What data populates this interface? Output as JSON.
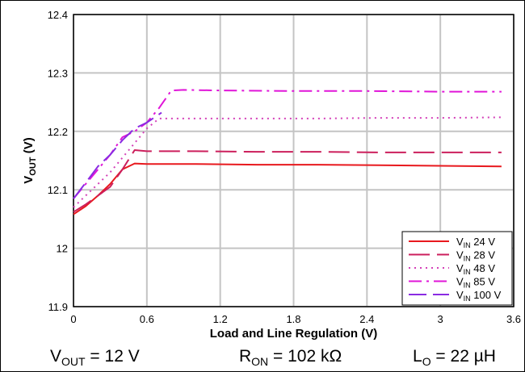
{
  "chart_data": {
    "type": "line",
    "title": "",
    "xlabel": "Load and Line Regulation (V)",
    "ylabel_main": "V",
    "ylabel_sub": "OUT",
    "ylabel_suffix": " (V)",
    "xlim": [
      0,
      3.6
    ],
    "ylim": [
      11.9,
      12.4
    ],
    "xticks": [
      0,
      0.6,
      1.2,
      1.8,
      2.4,
      3,
      3.6
    ],
    "xtick_labels": [
      "0",
      "0.6",
      "1.2",
      "1.8",
      "2.4",
      "3",
      "3.6"
    ],
    "yticks": [
      11.9,
      12,
      12.1,
      12.2,
      12.3,
      12.4
    ],
    "ytick_labels": [
      "11.9",
      "12",
      "12.1",
      "12.2",
      "12.3",
      "12.4"
    ],
    "grid": true,
    "legend_position": "bottom-right",
    "series": [
      {
        "name_main": "V",
        "name_sub": "IN",
        "name_suffix": " 24 V",
        "color": "#e8191e",
        "dash": "",
        "x": [
          0,
          0.1,
          0.2,
          0.3,
          0.4,
          0.5,
          0.6,
          1.0,
          1.5,
          2.0,
          2.5,
          3.0,
          3.5
        ],
        "y": [
          12.058,
          12.072,
          12.09,
          12.11,
          12.135,
          12.145,
          12.144,
          12.144,
          12.143,
          12.143,
          12.142,
          12.141,
          12.14
        ]
      },
      {
        "name_main": "V",
        "name_sub": "IN",
        "name_suffix": " 28 V",
        "color": "#cc1f5c",
        "dash": "26,9",
        "x": [
          0,
          0.1,
          0.2,
          0.3,
          0.4,
          0.5,
          0.6,
          1.0,
          1.5,
          2.0,
          2.5,
          3.0,
          3.5
        ],
        "y": [
          12.062,
          12.075,
          12.09,
          12.105,
          12.135,
          12.168,
          12.166,
          12.166,
          12.165,
          12.165,
          12.164,
          12.164,
          12.164
        ]
      },
      {
        "name_main": "V",
        "name_sub": "IN",
        "name_suffix": " 48 V",
        "color": "#d43fb8",
        "dash": "2,5",
        "x": [
          0,
          0.1,
          0.2,
          0.3,
          0.4,
          0.5,
          0.6,
          0.7,
          1.0,
          1.5,
          2.0,
          2.5,
          3.0,
          3.5
        ],
        "y": [
          12.07,
          12.09,
          12.11,
          12.13,
          12.155,
          12.18,
          12.205,
          12.222,
          12.222,
          12.222,
          12.222,
          12.223,
          12.223,
          12.224
        ]
      },
      {
        "name_main": "V",
        "name_sub": "IN",
        "name_suffix": " 85 V",
        "color": "#e015d8",
        "dash": "16,6,3,6",
        "x": [
          0,
          0.1,
          0.2,
          0.3,
          0.4,
          0.5,
          0.6,
          0.7,
          0.8,
          0.9,
          1.2,
          1.8,
          2.4,
          3.0,
          3.5
        ],
        "y": [
          12.085,
          12.11,
          12.135,
          12.16,
          12.19,
          12.2,
          12.215,
          12.24,
          12.27,
          12.271,
          12.27,
          12.269,
          12.269,
          12.268,
          12.268
        ]
      },
      {
        "name_main": "V",
        "name_sub": "IN",
        "name_suffix": " 100 V",
        "color": "#8a2be2",
        "dash": "22,8",
        "x": [
          0,
          0.1,
          0.2,
          0.3,
          0.4,
          0.5,
          0.6,
          0.72
        ],
        "y": [
          12.085,
          12.112,
          12.14,
          12.16,
          12.185,
          12.205,
          12.215,
          12.232
        ]
      }
    ]
  },
  "footer": {
    "vout_main": "V",
    "vout_sub": "OUT",
    "vout_value": " = 12 V",
    "ron_main": "R",
    "ron_sub": "ON",
    "ron_value": " = 102 kΩ",
    "lo_main": "L",
    "lo_sub": "O",
    "lo_value": " = 22 µH"
  }
}
